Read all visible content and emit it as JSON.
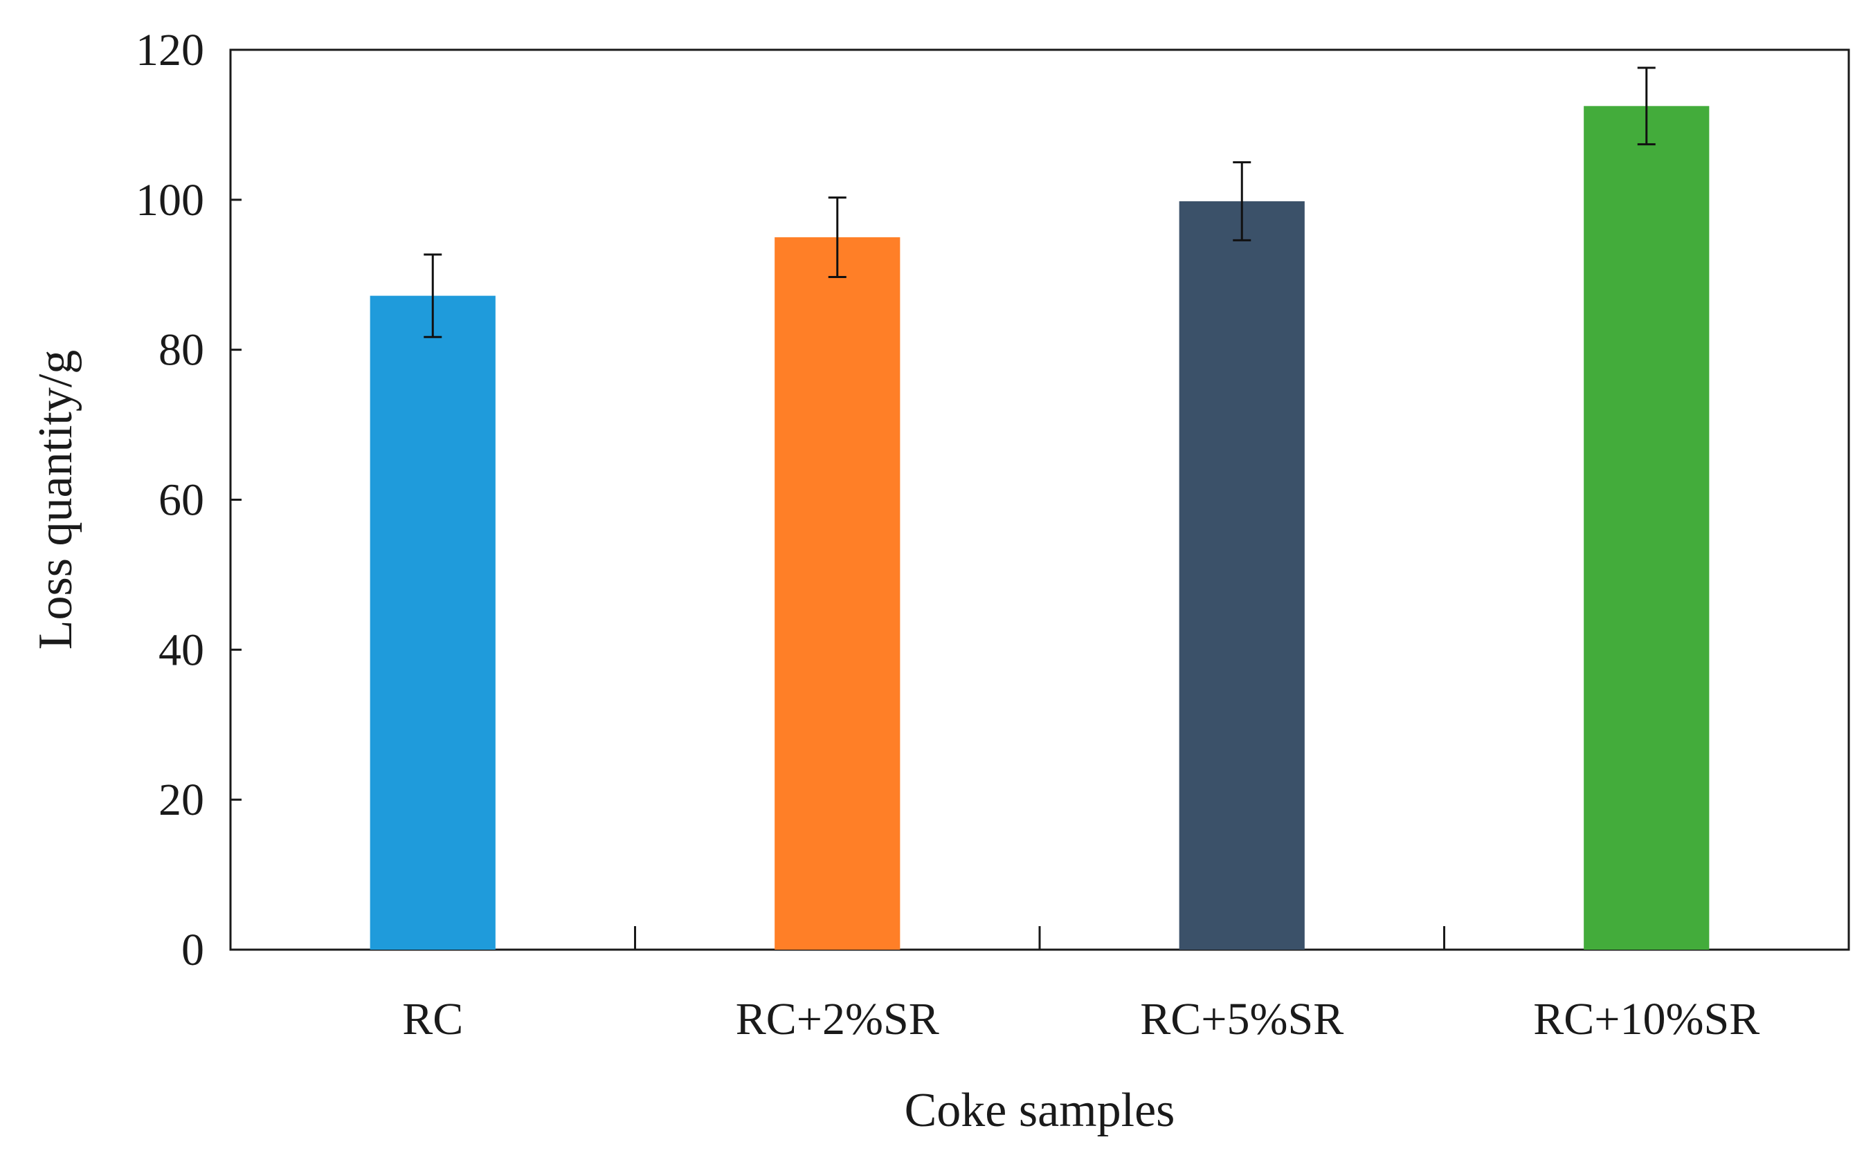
{
  "chart_data": {
    "type": "bar",
    "title": "",
    "xlabel": "Coke samples",
    "ylabel": "Loss quantity/g",
    "ylim": [
      0,
      120
    ],
    "yticks": [
      0,
      20,
      40,
      60,
      80,
      100,
      120
    ],
    "ytick_labels": [
      "0",
      "20",
      "40",
      "60",
      "80",
      "100",
      "120"
    ],
    "grid": false,
    "legend": "none",
    "categories": [
      "RC",
      "RC+2%SR",
      "RC+5%SR",
      "RC+10%SR"
    ],
    "values": [
      87.2,
      95.0,
      99.8,
      112.5
    ],
    "errors": [
      5.5,
      5.3,
      5.2,
      5.1
    ],
    "colors": [
      "#1f9bdb",
      "#ff7f27",
      "#3b5169",
      "#43ac3b"
    ]
  }
}
